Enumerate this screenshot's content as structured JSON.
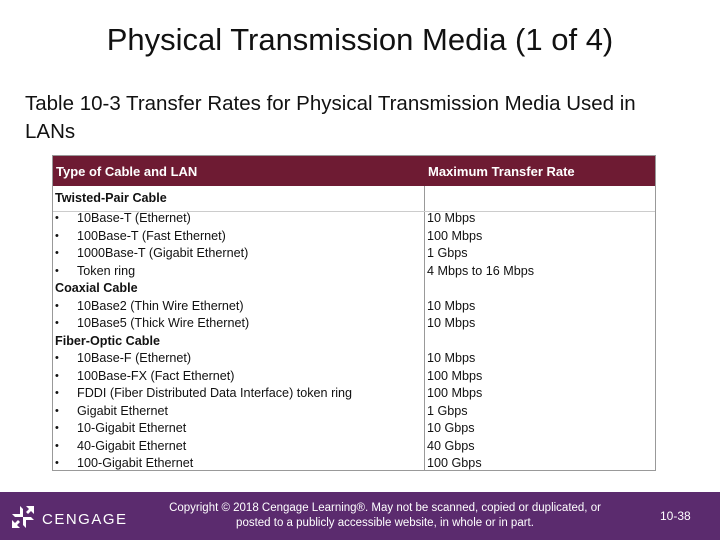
{
  "header": {
    "title": "Physical Transmission Media (1 of 4)"
  },
  "caption": "Table 10-3 Transfer Rates for Physical Transmission Media Used in LANs",
  "table": {
    "columns": [
      "Type of Cable and LAN",
      "Maximum Transfer Rate"
    ],
    "sections": [
      {
        "heading": "Twisted-Pair Cable",
        "items": [
          {
            "name": "10Base-T (Ethernet)",
            "rate": "10 Mbps"
          },
          {
            "name": "100Base-T (Fast Ethernet)",
            "rate": "100 Mbps"
          },
          {
            "name": "1000Base-T (Gigabit Ethernet)",
            "rate": "1 Gbps"
          },
          {
            "name": "Token ring",
            "rate": "4 Mbps to 16 Mbps"
          }
        ]
      },
      {
        "heading": "Coaxial Cable",
        "items": [
          {
            "name": "10Base2 (Thin Wire Ethernet)",
            "rate": "10 Mbps"
          },
          {
            "name": "10Base5 (Thick Wire Ethernet)",
            "rate": "10 Mbps"
          }
        ]
      },
      {
        "heading": "Fiber-Optic Cable",
        "items": [
          {
            "name": "10Base-F (Ethernet)",
            "rate": "10 Mbps"
          },
          {
            "name": "100Base-FX (Fact Ethernet)",
            "rate": "100 Mbps"
          },
          {
            "name": "FDDI (Fiber Distributed Data Interface) token ring",
            "rate": "100 Mbps"
          },
          {
            "name": "Gigabit Ethernet",
            "rate": "1 Gbps"
          },
          {
            "name": "10-Gigabit Ethernet",
            "rate": "10 Gbps"
          },
          {
            "name": "40-Gigabit Ethernet",
            "rate": "40 Gbps"
          },
          {
            "name": "100-Gigabit Ethernet",
            "rate": "100 Gbps"
          }
        ]
      }
    ]
  },
  "footer": {
    "brand": "CENGAGE",
    "copyright": "Copyright © 2018 Cengage Learning®. May not be scanned, copied or duplicated, or posted to a publicly accessible website, in whole or in part.",
    "page": "10-38"
  }
}
